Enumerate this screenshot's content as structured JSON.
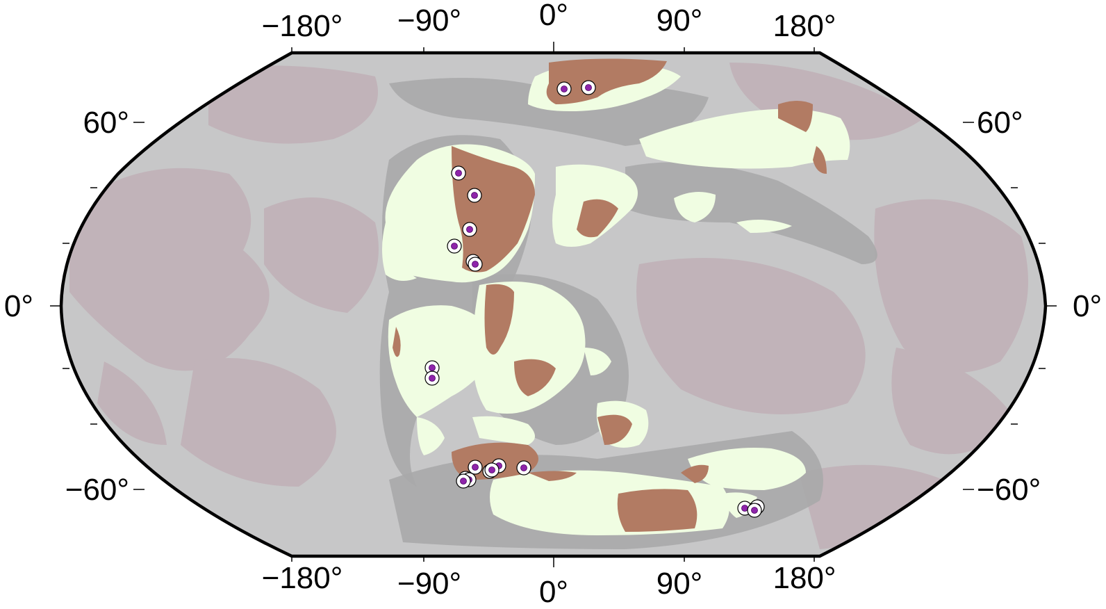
{
  "map": {
    "projection": "Robinson",
    "colors": {
      "ocean": "#c7c7c8",
      "ocean_deep": "#c1b3b9",
      "shelf": "#a9a9aa",
      "land": "#f0fde2",
      "highland": "#b27b63",
      "site_fill": "#8e24aa",
      "frame": "#000000"
    },
    "top_labels": [
      "−180°",
      "−90°",
      "0°",
      "90°",
      "180°"
    ],
    "bottom_labels": [
      "−180°",
      "−90°",
      "0°",
      "90°",
      "180°"
    ],
    "left_labels": [
      "60°",
      "0°",
      "−60°"
    ],
    "right_labels": [
      "60°",
      "0°",
      "−60°"
    ],
    "marker_icon": "circle-dot-icon",
    "site_count": 22
  }
}
